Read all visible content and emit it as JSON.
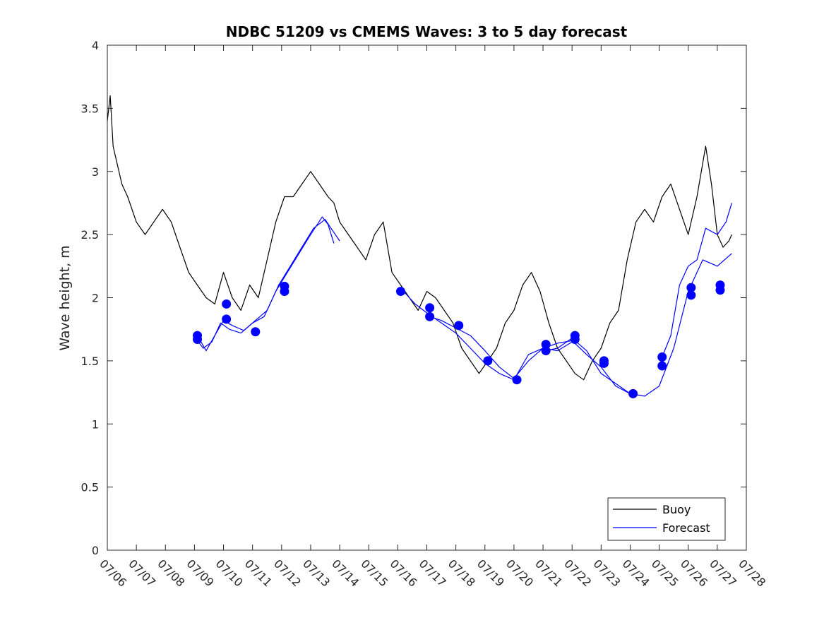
{
  "chart_data": {
    "type": "line",
    "title": "NDBC 51209 vs CMEMS Waves: 3 to 5 day forecast",
    "xlabel": "",
    "ylabel": "Wave height, m",
    "ylim": [
      0,
      4
    ],
    "yticks": [
      "0",
      "0.5",
      "1",
      "1.5",
      "2",
      "2.5",
      "3",
      "3.5",
      "4"
    ],
    "xticks": [
      "07/06",
      "07/07",
      "07/08",
      "07/09",
      "07/10",
      "07/11",
      "07/12",
      "07/13",
      "07/14",
      "07/15",
      "07/16",
      "07/17",
      "07/18",
      "07/19",
      "07/20",
      "07/21",
      "07/22",
      "07/23",
      "07/24",
      "07/25",
      "07/26",
      "07/27",
      "07/28"
    ],
    "grid": false,
    "legend_position": "bottom-right",
    "legend": [
      "Buoy",
      "Forecast"
    ],
    "colors": {
      "buoy": "#000000",
      "forecast": "#0000ff"
    },
    "buoy": {
      "name": "Buoy",
      "x": [
        0,
        0.1,
        0.2,
        0.3,
        0.5,
        0.7,
        1.0,
        1.3,
        1.6,
        1.9,
        2.2,
        2.5,
        2.8,
        3.1,
        3.4,
        3.7,
        4.0,
        4.3,
        4.6,
        4.9,
        5.2,
        5.5,
        5.8,
        6.1,
        6.4,
        6.7,
        7.0,
        7.3,
        7.6,
        7.8,
        8.0,
        8.3,
        8.6,
        8.9,
        9.2,
        9.5,
        9.8,
        10.1,
        10.4,
        10.7,
        11.0,
        11.3,
        11.6,
        11.9,
        12.2,
        12.5,
        12.8,
        13.1,
        13.4,
        13.7,
        14.0,
        14.3,
        14.6,
        14.9,
        15.2,
        15.5,
        15.8,
        16.1,
        16.4,
        16.7,
        17.0,
        17.3,
        17.6,
        17.9,
        18.2,
        18.5,
        18.8,
        19.1,
        19.4,
        19.7,
        20.0,
        20.3,
        20.6,
        20.8,
        21.0,
        21.2,
        21.4,
        21.5
      ],
      "y": [
        3.4,
        3.6,
        3.2,
        3.1,
        2.9,
        2.8,
        2.6,
        2.5,
        2.6,
        2.7,
        2.6,
        2.4,
        2.2,
        2.1,
        2.0,
        1.95,
        2.2,
        2.0,
        1.9,
        2.1,
        2.0,
        2.3,
        2.6,
        2.8,
        2.8,
        2.9,
        3.0,
        2.9,
        2.8,
        2.75,
        2.6,
        2.5,
        2.4,
        2.3,
        2.5,
        2.6,
        2.2,
        2.1,
        2.0,
        1.9,
        2.05,
        2.0,
        1.9,
        1.8,
        1.6,
        1.5,
        1.4,
        1.5,
        1.6,
        1.8,
        1.9,
        2.1,
        2.2,
        2.05,
        1.8,
        1.6,
        1.5,
        1.4,
        1.35,
        1.5,
        1.6,
        1.8,
        1.9,
        2.3,
        2.6,
        2.7,
        2.6,
        2.8,
        2.9,
        2.7,
        2.5,
        2.8,
        3.2,
        2.9,
        2.5,
        2.4,
        2.45,
        2.5
      ]
    },
    "forecast": [
      {
        "x": [
          3.1,
          3.3,
          3.6,
          3.9,
          4.2,
          4.6,
          5.0,
          5.4,
          5.8,
          6.2,
          6.6,
          7.0,
          7.4,
          7.6,
          7.8
        ],
        "y": [
          1.66,
          1.6,
          1.65,
          1.8,
          1.75,
          1.72,
          1.8,
          1.85,
          2.05,
          2.2,
          2.35,
          2.5,
          2.64,
          2.58,
          2.43
        ]
      },
      {
        "x": [
          3.1,
          3.4,
          3.7,
          4.0,
          4.3,
          4.7,
          5.1,
          5.5,
          5.9,
          6.3,
          6.7,
          7.1,
          7.5,
          7.7,
          8.0
        ],
        "y": [
          1.7,
          1.58,
          1.7,
          1.82,
          1.78,
          1.74,
          1.82,
          1.9,
          2.1,
          2.25,
          2.4,
          2.55,
          2.62,
          2.55,
          2.45
        ]
      },
      {
        "x": [
          10.2,
          10.6,
          11.0,
          11.5,
          12.0,
          12.5,
          13.0,
          13.5,
          14.0,
          14.5,
          15.0,
          15.5,
          16.0
        ],
        "y": [
          2.05,
          1.95,
          1.88,
          1.8,
          1.72,
          1.6,
          1.48,
          1.4,
          1.35,
          1.55,
          1.6,
          1.58,
          1.65
        ]
      },
      {
        "x": [
          11.1,
          11.5,
          12.0,
          12.5,
          13.0,
          13.5,
          14.0,
          14.5,
          15.0,
          15.5,
          16.0,
          16.5,
          17.0,
          17.5,
          18.0
        ],
        "y": [
          1.85,
          1.82,
          1.76,
          1.7,
          1.58,
          1.45,
          1.36,
          1.5,
          1.6,
          1.64,
          1.66,
          1.55,
          1.45,
          1.3,
          1.24
        ]
      },
      {
        "x": [
          15.1,
          15.5,
          16.0,
          16.5,
          17.0,
          17.5,
          18.0,
          18.5,
          19.0,
          19.5,
          20.0,
          20.5,
          21.0,
          21.5
        ],
        "y": [
          1.58,
          1.6,
          1.68,
          1.58,
          1.4,
          1.32,
          1.24,
          1.22,
          1.3,
          1.6,
          2.05,
          2.3,
          2.25,
          2.35
        ]
      },
      {
        "x": [
          19.1,
          19.4,
          19.7,
          20.0,
          20.3,
          20.6,
          21.0,
          21.3,
          21.5
        ],
        "y": [
          1.53,
          1.7,
          2.1,
          2.25,
          2.3,
          2.55,
          2.5,
          2.6,
          2.75
        ]
      }
    ],
    "initial_points": {
      "x": [
        3.1,
        3.1,
        4.1,
        4.1,
        5.1,
        6.1,
        6.1,
        10.1,
        11.1,
        11.1,
        12.1,
        13.1,
        14.1,
        15.1,
        15.1,
        16.1,
        16.1,
        17.1,
        17.1,
        18.1,
        19.1,
        19.1,
        20.1,
        20.1,
        21.1,
        21.1
      ],
      "y": [
        1.7,
        1.67,
        1.95,
        1.83,
        1.73,
        2.09,
        2.05,
        2.05,
        1.92,
        1.85,
        1.78,
        1.5,
        1.35,
        1.63,
        1.58,
        1.7,
        1.67,
        1.5,
        1.48,
        1.24,
        1.53,
        1.46,
        2.08,
        2.02,
        2.1,
        2.06
      ]
    }
  }
}
